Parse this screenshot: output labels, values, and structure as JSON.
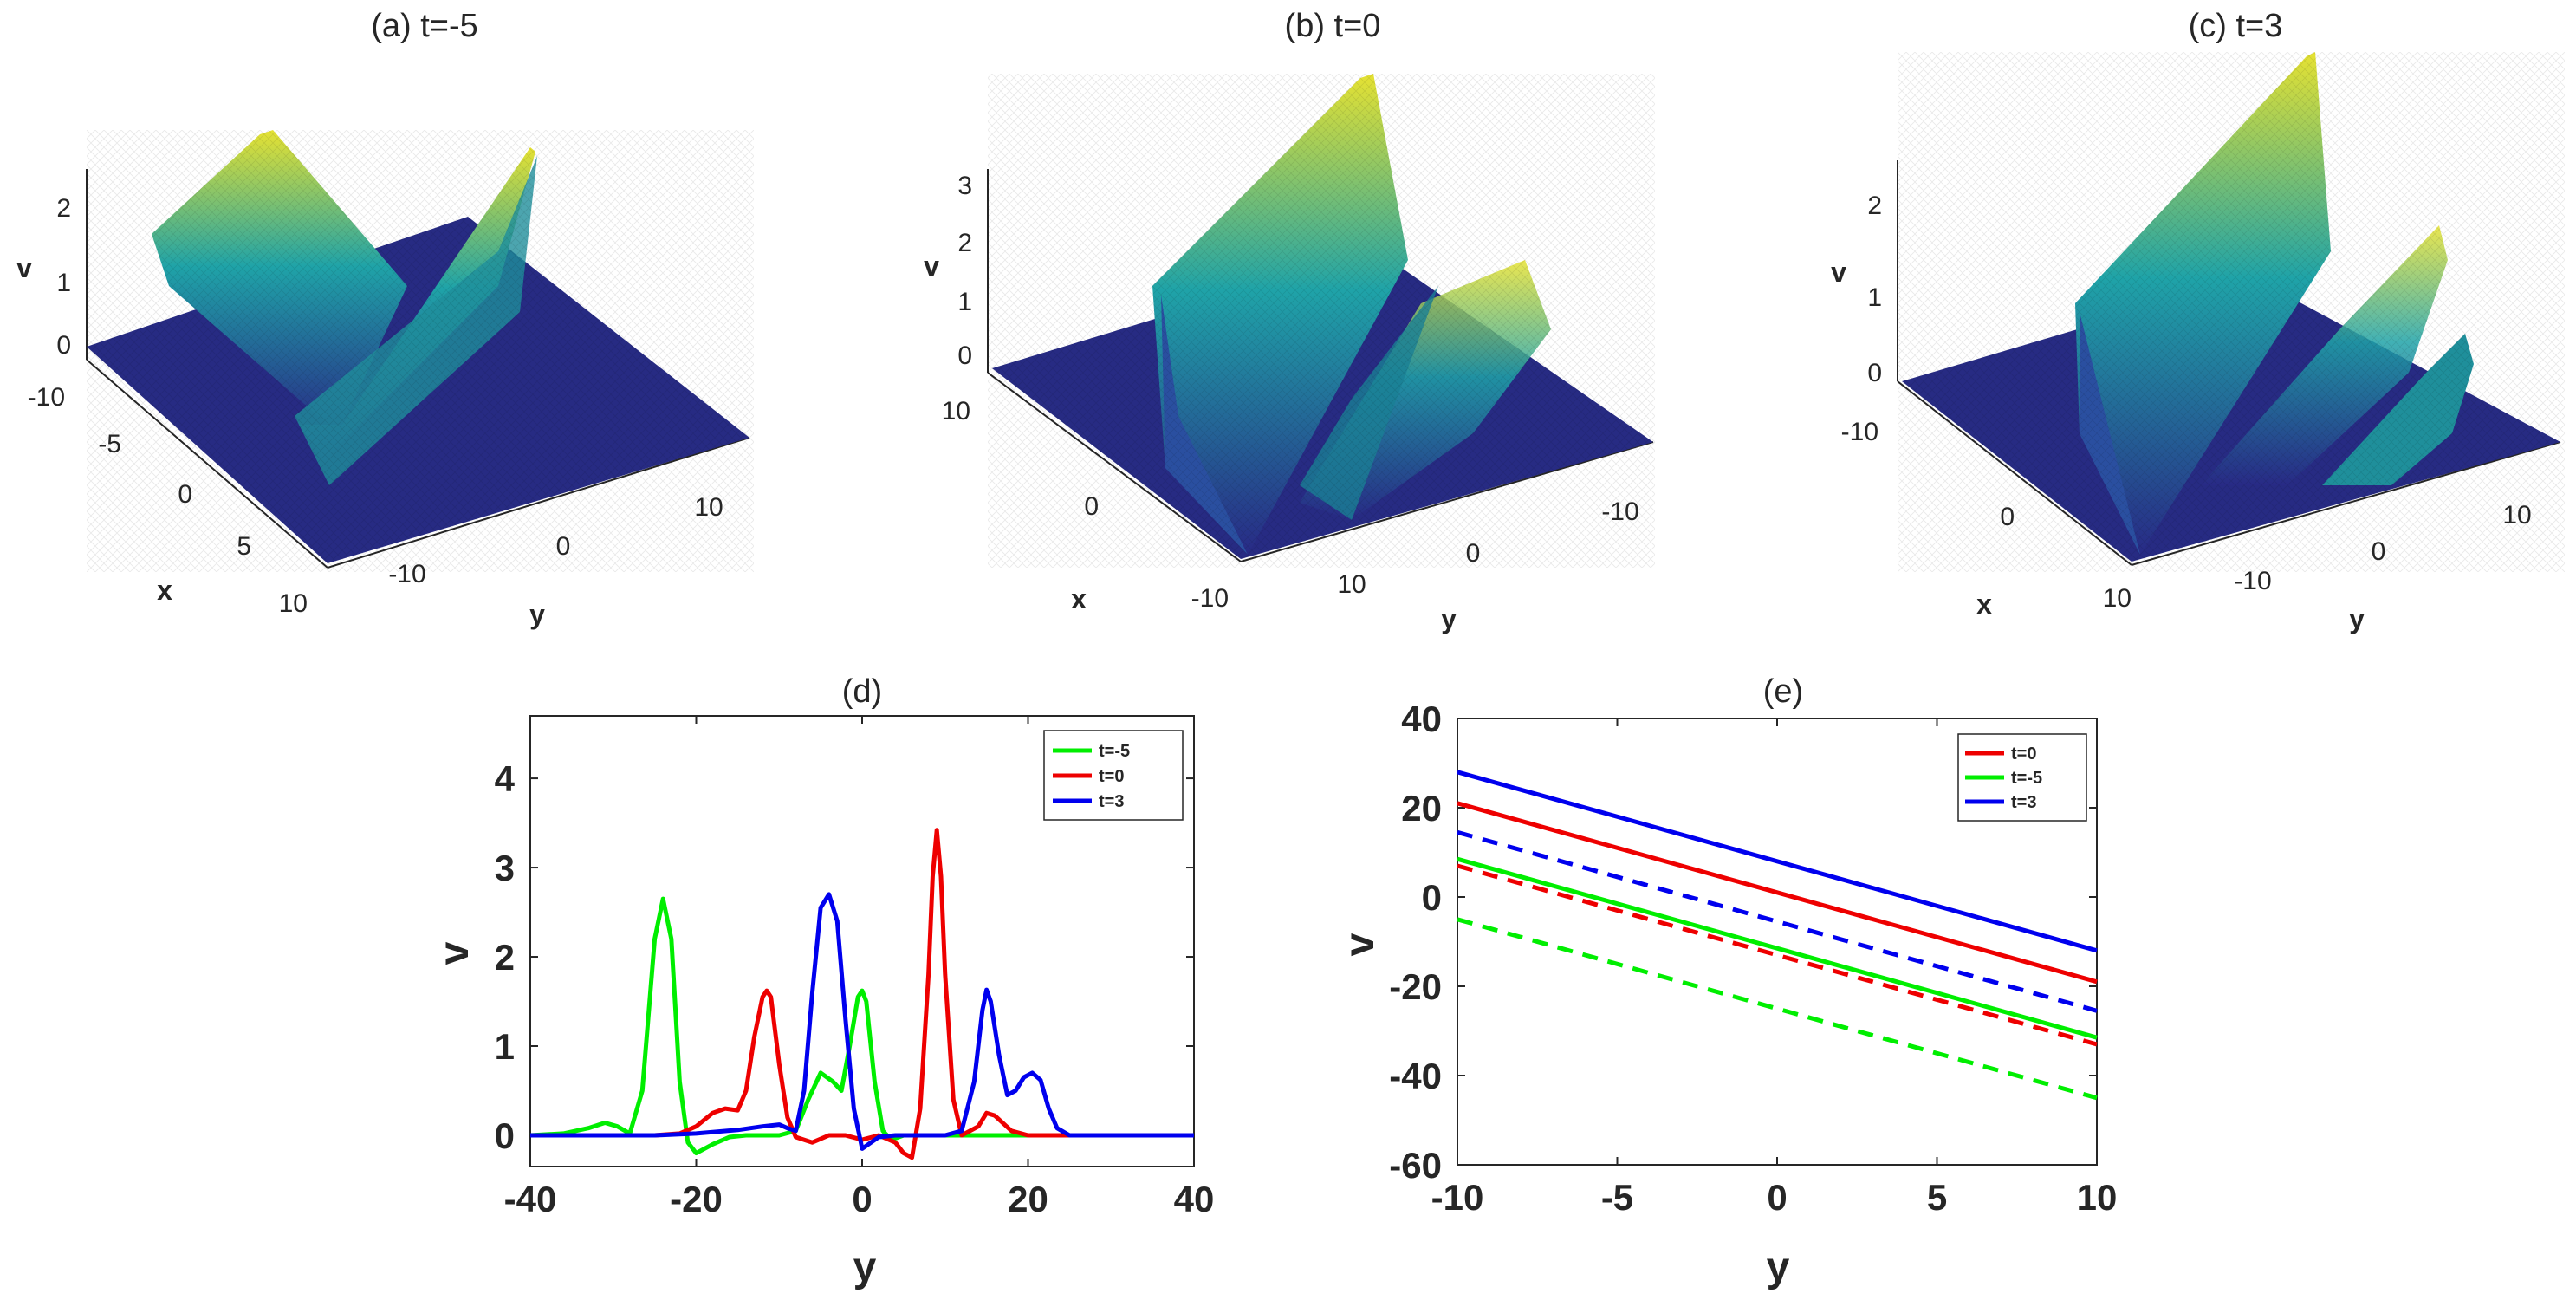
{
  "colors": {
    "green": "#00ee00",
    "red": "#ee0000",
    "blue": "#0000ee",
    "axis": "#262626",
    "surface_low": "#282a86",
    "surface_mid": "#1fa3a8",
    "surface_high": "#e6e232"
  },
  "chart_data": [
    {
      "id": "a",
      "type": "surface3d",
      "title": "(a) t=-5",
      "zlabel": "v",
      "xlabel": "x",
      "ylabel": "y",
      "zticks": [
        "0",
        "1",
        "2"
      ],
      "xticks": [
        "-10",
        "-5",
        "0",
        "5",
        "10"
      ],
      "yticks": [
        "-10",
        "0",
        "10"
      ],
      "peaks": [
        {
          "x": -5,
          "height": 2.6
        },
        {
          "x": 0,
          "height": 1.6
        }
      ]
    },
    {
      "id": "b",
      "type": "surface3d",
      "title": "(b) t=0",
      "zlabel": "v",
      "xlabel": "x",
      "ylabel": "y",
      "zticks": [
        "0",
        "1",
        "2",
        "3"
      ],
      "xticks": [
        "10",
        "0",
        "-10"
      ],
      "yticks": [
        "10",
        "0",
        "-10"
      ],
      "peaks": [
        {
          "x": 9,
          "height": 3.4
        },
        {
          "x": -11,
          "height": 1.6
        }
      ]
    },
    {
      "id": "c",
      "type": "surface3d",
      "title": "(c) t=3",
      "zlabel": "v",
      "xlabel": "x",
      "ylabel": "y",
      "zticks": [
        "0",
        "1",
        "2"
      ],
      "xticks": [
        "-10",
        "0",
        "10"
      ],
      "yticks": [
        "-10",
        "0",
        "10"
      ],
      "peaks": [
        {
          "x": -5,
          "height": 2.7
        },
        {
          "x": 15,
          "height": 1.6
        },
        {
          "x": 20,
          "height": 0.7
        }
      ]
    },
    {
      "id": "d",
      "type": "line",
      "title": "(d)",
      "xlabel": "y",
      "ylabel": "v",
      "xlim": [
        -40,
        40
      ],
      "ylim": [
        -0.35,
        4.7
      ],
      "xticks": [
        -40,
        -20,
        0,
        20,
        40
      ],
      "yticks": [
        0,
        1,
        2,
        3,
        4
      ],
      "legend": {
        "position": "top-right"
      },
      "series": [
        {
          "name": "t=-5",
          "color": "#00ee00",
          "x": [
            -40,
            -36,
            -33,
            -31,
            -29.5,
            -28,
            -26.5,
            -25,
            -24,
            -23,
            -22,
            -21,
            -20,
            -18,
            -16,
            -14,
            -12,
            -10,
            -8,
            -6.5,
            -5,
            -3.5,
            -2.5,
            -1.5,
            -0.5,
            0,
            0.5,
            1.5,
            2.5,
            3.5,
            5,
            8,
            12,
            16,
            20,
            25,
            30,
            40
          ],
          "y": [
            0,
            0.02,
            0.08,
            0.14,
            0.1,
            0.02,
            0.5,
            2.2,
            2.65,
            2.2,
            0.6,
            -0.08,
            -0.2,
            -0.1,
            -0.02,
            0,
            0,
            0,
            0.05,
            0.4,
            0.7,
            0.6,
            0.5,
            1.0,
            1.55,
            1.62,
            1.5,
            0.6,
            0.05,
            -0.05,
            0,
            0,
            0,
            0,
            0,
            0,
            0,
            0
          ]
        },
        {
          "name": "t=0",
          "color": "#ee0000",
          "x": [
            -40,
            -25,
            -22,
            -20,
            -18,
            -16.5,
            -15,
            -14,
            -13,
            -12,
            -11.5,
            -11,
            -10,
            -9,
            -8,
            -6,
            -4,
            -2,
            0,
            2,
            4,
            5,
            6,
            7,
            8,
            8.5,
            9,
            9.5,
            10,
            11,
            12,
            14,
            15,
            16,
            18,
            20,
            25,
            40
          ],
          "y": [
            0,
            0,
            0.02,
            0.1,
            0.25,
            0.3,
            0.28,
            0.5,
            1.1,
            1.55,
            1.62,
            1.55,
            0.8,
            0.2,
            -0.02,
            -0.08,
            0,
            0,
            -0.05,
            0,
            -0.08,
            -0.2,
            -0.25,
            0.3,
            1.8,
            2.9,
            3.42,
            2.9,
            1.8,
            0.4,
            0,
            0.1,
            0.25,
            0.22,
            0.05,
            0,
            0,
            0
          ]
        },
        {
          "name": "t=3",
          "color": "#0000ee",
          "x": [
            -40,
            -30,
            -25,
            -20,
            -15,
            -12,
            -10,
            -9,
            -8,
            -7,
            -6,
            -5,
            -4,
            -3,
            -2,
            -1,
            0,
            2,
            4,
            6,
            8,
            10,
            12,
            13.5,
            14.5,
            15,
            15.5,
            16.5,
            17.5,
            18.5,
            19.5,
            20.5,
            21.5,
            22.5,
            23.5,
            25,
            30,
            40
          ],
          "y": [
            0,
            0,
            0,
            0.02,
            0.06,
            0.1,
            0.12,
            0.08,
            0.05,
            0.5,
            1.6,
            2.55,
            2.7,
            2.4,
            1.3,
            0.3,
            -0.15,
            -0.02,
            0,
            0,
            0,
            0,
            0.05,
            0.6,
            1.4,
            1.63,
            1.5,
            0.9,
            0.45,
            0.5,
            0.65,
            0.7,
            0.62,
            0.3,
            0.08,
            0,
            0,
            0
          ]
        }
      ]
    },
    {
      "id": "e",
      "type": "line",
      "title": "(e)",
      "xlabel": "y",
      "ylabel": "v",
      "xlim": [
        -10,
        10
      ],
      "ylim": [
        -60,
        40
      ],
      "xticks": [
        -10,
        -5,
        0,
        5,
        10
      ],
      "yticks": [
        -60,
        -40,
        -20,
        0,
        20,
        40
      ],
      "legend": {
        "position": "top-right"
      },
      "series": [
        {
          "name": "t=0",
          "color": "#ee0000",
          "x": [
            -10,
            10
          ],
          "y": [
            21,
            -19
          ],
          "dash": false,
          "legend": true
        },
        {
          "name": "t=-5",
          "color": "#00ee00",
          "x": [
            -10,
            10
          ],
          "y": [
            8.5,
            -31.5
          ],
          "dash": false,
          "legend": true
        },
        {
          "name": "t=3",
          "color": "#0000ee",
          "x": [
            -10,
            10
          ],
          "y": [
            28,
            -12
          ],
          "dash": false,
          "legend": true
        },
        {
          "name": "t=3 dashed",
          "color": "#0000ee",
          "x": [
            -10,
            10
          ],
          "y": [
            14.5,
            -25.5
          ],
          "dash": true,
          "legend": false
        },
        {
          "name": "t=0 dashed",
          "color": "#ee0000",
          "x": [
            -10,
            10
          ],
          "y": [
            7,
            -33
          ],
          "dash": true,
          "legend": false
        },
        {
          "name": "t=-5 dashed",
          "color": "#00ee00",
          "x": [
            -10,
            10
          ],
          "y": [
            -5,
            -45
          ],
          "dash": true,
          "legend": false
        }
      ]
    }
  ]
}
